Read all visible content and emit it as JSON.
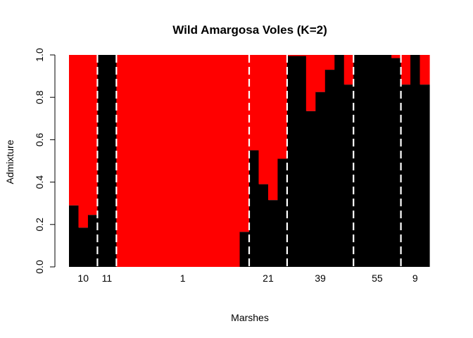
{
  "chart_data": {
    "type": "bar",
    "stacked": true,
    "title": "Wild Amargosa Voles (K=2)",
    "xlabel": "Marshes",
    "ylabel": "Admixture",
    "ylim": [
      0,
      1
    ],
    "yticks": [
      "0.0",
      "0.2",
      "0.4",
      "0.6",
      "0.8",
      "1.0"
    ],
    "colors": {
      "cluster1": "#000000",
      "cluster2": "#ff0000",
      "separator": "#ffffff"
    },
    "groups": [
      {
        "label": "10",
        "values": [
          0.29,
          0.185,
          0.245
        ]
      },
      {
        "label": "11",
        "values": [
          1.0,
          1.0
        ]
      },
      {
        "label": "1",
        "values": [
          0,
          0,
          0,
          0,
          0,
          0,
          0,
          0,
          0,
          0,
          0,
          0,
          0,
          0.165
        ]
      },
      {
        "label": "21",
        "values": [
          0.55,
          0.39,
          0.315,
          0.51
        ]
      },
      {
        "label": "39",
        "values": [
          0.995,
          0.995,
          0.735,
          0.825,
          0.93,
          1.0,
          0.86
        ]
      },
      {
        "label": "55",
        "values": [
          1.0,
          1.0,
          1.0,
          1.0,
          0.985
        ]
      },
      {
        "label": "9",
        "values": [
          0.86,
          1.0,
          0.86
        ]
      }
    ]
  }
}
